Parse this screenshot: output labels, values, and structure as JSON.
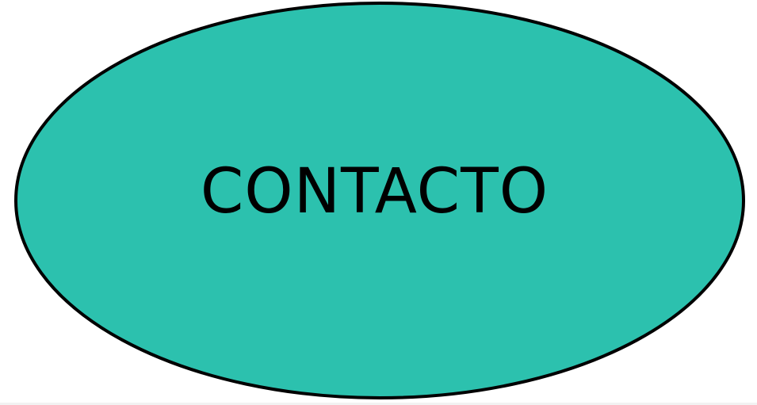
{
  "button": {
    "label": "CONTACTO",
    "fill_color": "#2CC1AE",
    "border_color": "#000000",
    "text_color": "#000000"
  }
}
